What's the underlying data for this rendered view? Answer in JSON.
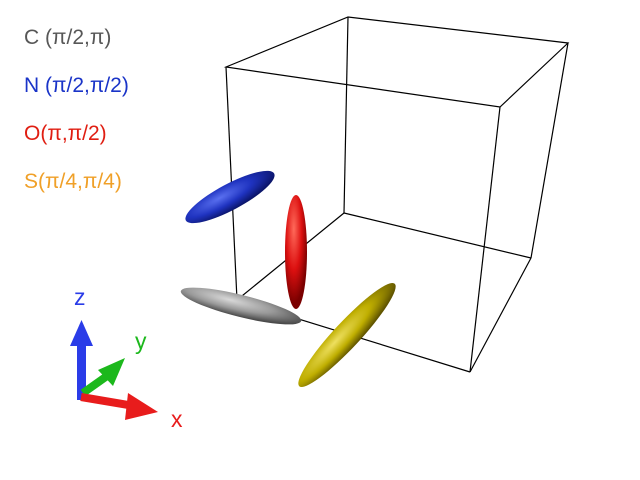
{
  "legend": [
    {
      "label": "C (π/2,π)",
      "color": "#575757"
    },
    {
      "label": "N (π/2,π/2)",
      "color": "#1a34c8"
    },
    {
      "label": "O(π,π/2)",
      "color": "#e01e12"
    },
    {
      "label": "S(π/4,π/4)",
      "color": "#f0a028"
    }
  ],
  "ellipsoids": [
    {
      "name": "C",
      "color": "#a8a8a8"
    },
    {
      "name": "N",
      "color": "#2a40c8"
    },
    {
      "name": "O",
      "color": "#e01818"
    },
    {
      "name": "S",
      "color": "#c8b400"
    }
  ],
  "axes": {
    "x": {
      "label": "x",
      "color": "#e81c1c"
    },
    "y": {
      "label": "y",
      "color": "#1cb81c"
    },
    "z": {
      "label": "z",
      "color": "#2a3ce8"
    }
  }
}
